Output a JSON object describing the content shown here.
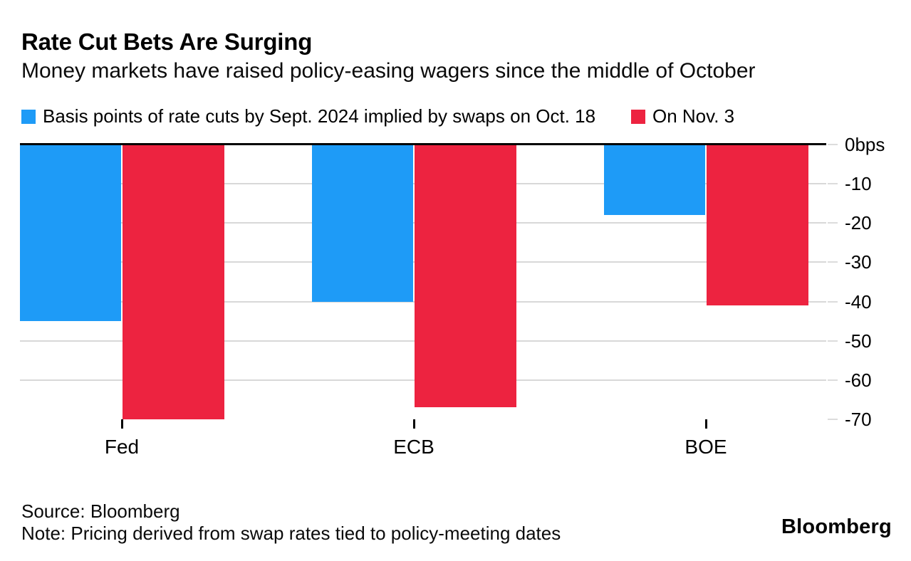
{
  "header": {
    "title": "Rate Cut Bets Are Surging",
    "subtitle": "Money markets have raised policy-easing wagers since the middle of October"
  },
  "legend": [
    {
      "label": "Basis points of rate cuts by Sept. 2024 implied by swaps on Oct. 18",
      "color": "#1e9bf7"
    },
    {
      "label": "On Nov. 3",
      "color": "#ed2340"
    }
  ],
  "chart_data": {
    "type": "bar",
    "categories": [
      "Fed",
      "ECB",
      "BOE"
    ],
    "series": [
      {
        "name": "Basis points of rate cuts by Sept. 2024 implied by swaps on Oct. 18",
        "color": "#1e9bf7",
        "values": [
          -45,
          -40,
          -18
        ]
      },
      {
        "name": "On Nov. 3",
        "color": "#ed2340",
        "values": [
          -70,
          -67,
          -41
        ]
      }
    ],
    "title": "Rate Cut Bets Are Surging",
    "xlabel": "",
    "ylabel": "bps",
    "ylim": [
      -70,
      0
    ],
    "yticks": [
      0,
      -10,
      -20,
      -30,
      -40,
      -50,
      -60,
      -70
    ],
    "ytick_labels": [
      "0bps",
      "-10",
      "-20",
      "-30",
      "-40",
      "-50",
      "-60",
      "-70"
    ],
    "grid": true,
    "legend_position": "top"
  },
  "footer": {
    "source": "Source: Bloomberg",
    "note": "Note: Pricing derived from swap rates tied to policy-meeting dates",
    "brand": "Bloomberg"
  }
}
